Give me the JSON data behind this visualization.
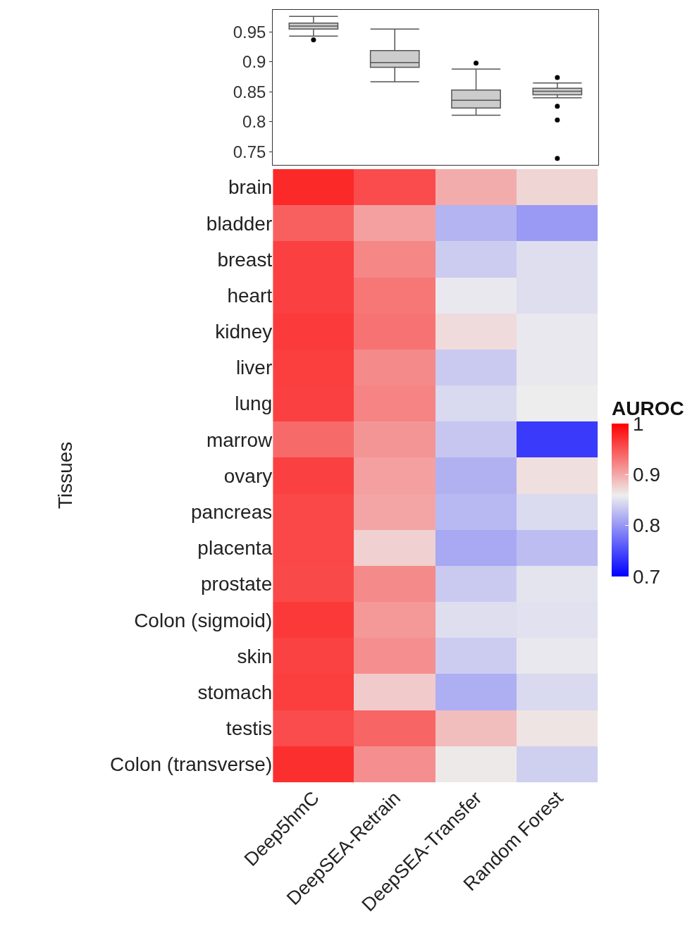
{
  "chart_data": [
    {
      "type": "box",
      "ylim": [
        0.728,
        0.987
      ],
      "yticks": [
        0.75,
        0.8,
        0.85,
        0.9,
        0.95
      ],
      "tick_labels": "y",
      "series": [
        {
          "color": "#cccccc",
          "boxes": [
            {
              "low": 0.943,
              "q1": 0.955,
              "median": 0.96,
              "q3": 0.965,
              "high": 0.976,
              "outliers": [
                0.937
              ]
            },
            {
              "low": 0.867,
              "q1": 0.891,
              "median": 0.899,
              "q3": 0.919,
              "high": 0.955
            },
            {
              "low": 0.811,
              "q1": 0.823,
              "median": 0.836,
              "q3": 0.853,
              "high": 0.888,
              "outliers": [
                0.898
              ]
            },
            {
              "low": 0.84,
              "q1": 0.845,
              "median": 0.851,
              "q3": 0.856,
              "high": 0.865,
              "outliers": [
                0.874,
                0.826,
                0.803,
                0.739
              ]
            }
          ]
        }
      ]
    },
    {
      "type": "heatmap",
      "ylabel": "Tissues",
      "clabel": "AUROC",
      "clim": [
        0.7,
        1
      ],
      "cticks": [
        0.7,
        0.8,
        0.9,
        1
      ],
      "categories": [
        "Deep5hmC",
        "DeepSEA-Retrain",
        "DeepSEA-Transfer",
        "Random Forest"
      ],
      "y_categories": [
        "brain",
        "bladder",
        "breast",
        "heart",
        "kidney",
        "liver",
        "lung",
        "marrow",
        "ovary",
        "pancreas",
        "placenta",
        "prostate",
        "Colon (sigmoid)",
        "skin",
        "stomach",
        "testis",
        "Colon (transverse)"
      ],
      "cells": [
        [
          0.976,
          0.955,
          0.898,
          0.874
        ],
        [
          0.943,
          0.905,
          0.82,
          0.803
        ],
        [
          0.962,
          0.92,
          0.836,
          0.848
        ],
        [
          0.962,
          0.93,
          0.855,
          0.848
        ],
        [
          0.965,
          0.932,
          0.87,
          0.855
        ],
        [
          0.963,
          0.918,
          0.835,
          0.855
        ],
        [
          0.962,
          0.922,
          0.845,
          0.858
        ],
        [
          0.937,
          0.912,
          0.832,
          0.739
        ],
        [
          0.962,
          0.905,
          0.818,
          0.868
        ],
        [
          0.958,
          0.902,
          0.823,
          0.846
        ],
        [
          0.958,
          0.877,
          0.812,
          0.826
        ],
        [
          0.957,
          0.918,
          0.835,
          0.852
        ],
        [
          0.966,
          0.91,
          0.848,
          0.85
        ],
        [
          0.961,
          0.915,
          0.836,
          0.855
        ],
        [
          0.963,
          0.88,
          0.816,
          0.845
        ],
        [
          0.955,
          0.94,
          0.888,
          0.865
        ],
        [
          0.972,
          0.915,
          0.862,
          0.838
        ]
      ]
    }
  ]
}
